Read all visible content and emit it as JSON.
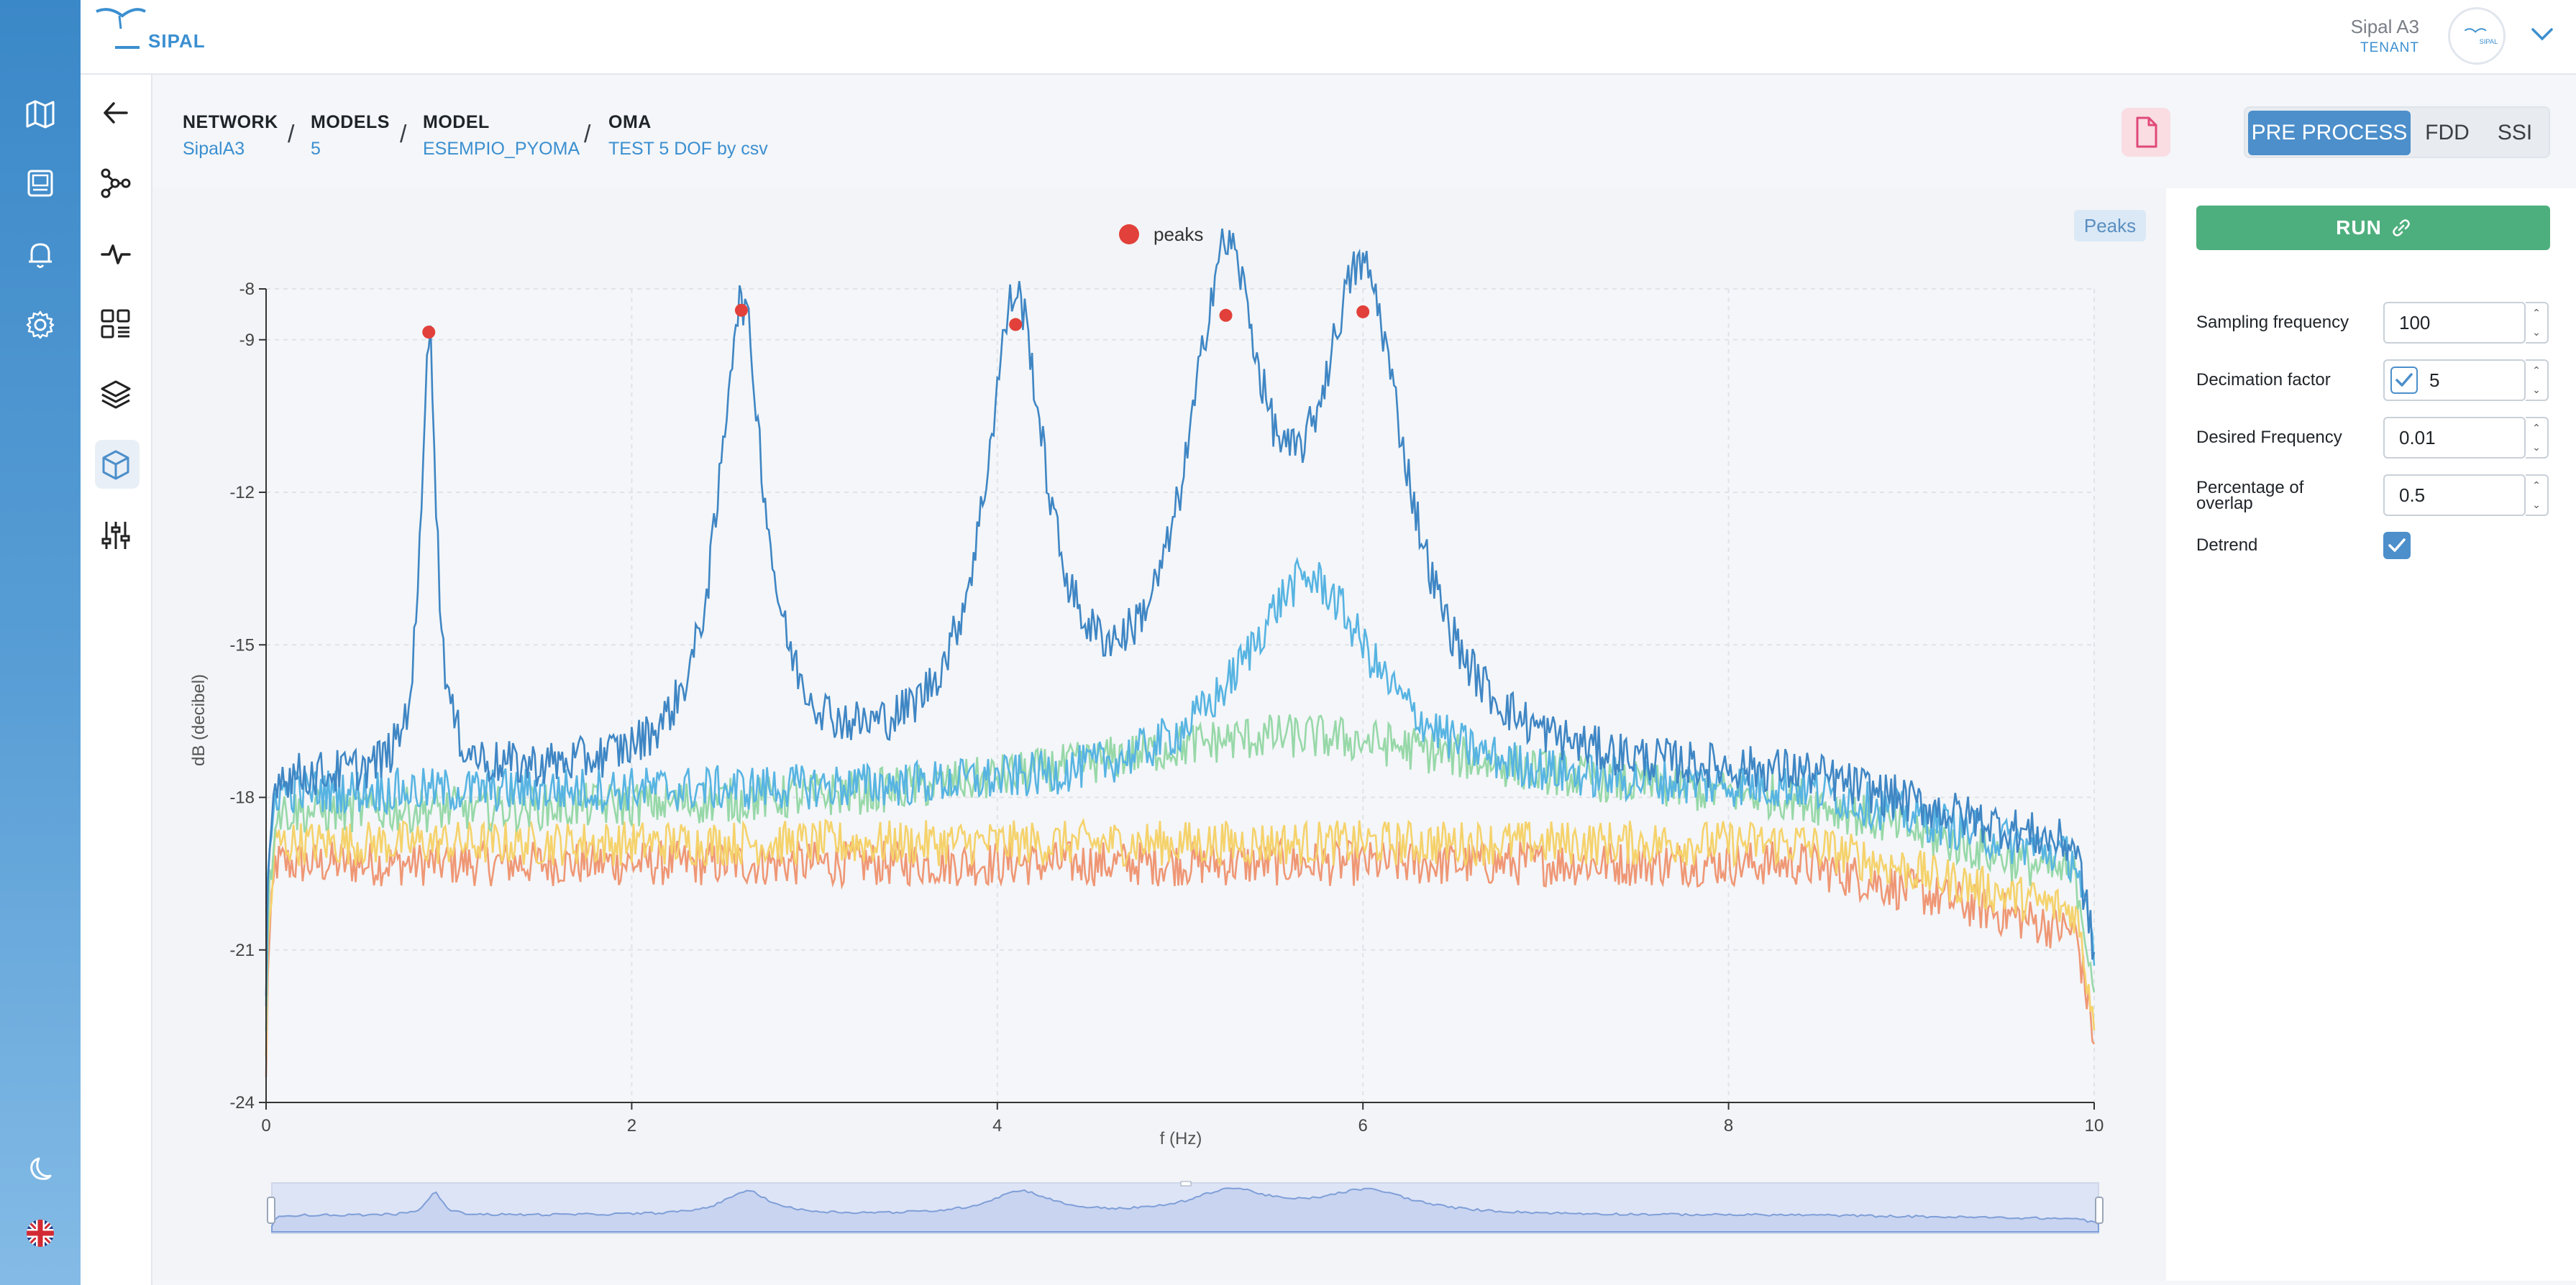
{
  "header": {
    "logo_text": "SIPAL",
    "user_name": "Sipal A3",
    "user_role": "TENANT",
    "avatar_text": "SIPAL"
  },
  "sidebar_primary": {
    "items": [
      {
        "icon": "map-icon"
      },
      {
        "icon": "calendar-icon"
      },
      {
        "icon": "bell-icon"
      },
      {
        "icon": "gear-icon"
      }
    ],
    "bottom": [
      {
        "icon": "moon-icon"
      },
      {
        "icon": "uk-flag-icon"
      }
    ]
  },
  "sidebar_secondary": {
    "items": [
      {
        "icon": "back-arrow-icon"
      },
      {
        "icon": "network-icon"
      },
      {
        "icon": "pulse-icon"
      },
      {
        "icon": "dashboard-list-icon"
      },
      {
        "icon": "layers-icon"
      },
      {
        "icon": "cube-icon",
        "active": true
      },
      {
        "icon": "sliders-icon"
      }
    ]
  },
  "breadcrumb": [
    {
      "label": "NETWORK",
      "value": "SipalA3"
    },
    {
      "label": "MODELS",
      "value": "5"
    },
    {
      "label": "MODEL",
      "value": "ESEMPIO_PYOMA"
    },
    {
      "label": "OMA",
      "value": "TEST 5 DOF by csv"
    }
  ],
  "breadcrumb_separator": "/",
  "tabs": [
    {
      "label": "PRE PROCESS",
      "active": true
    },
    {
      "label": "FDD",
      "active": false
    },
    {
      "label": "SSI",
      "active": false
    }
  ],
  "peaks_badge": "Peaks",
  "run_button": "RUN",
  "params": [
    {
      "label": "Sampling frequency",
      "value": "100",
      "checkbox": false
    },
    {
      "label": "Decimation factor",
      "value": "5",
      "checkbox": true
    },
    {
      "label": "Desired Frequency",
      "value": "0.01",
      "checkbox": false
    },
    {
      "label": "Percentage of overlap",
      "label_line1": "Percentage of",
      "label_line2": "overlap",
      "value": "0.5",
      "checkbox": false
    }
  ],
  "detrend": {
    "label": "Detrend",
    "checked": true
  },
  "chart_data": {
    "type": "line",
    "xlabel": "f (Hz)",
    "ylabel": "dB (decibel)",
    "xlim": [
      0,
      10
    ],
    "ylim": [
      -24,
      -8
    ],
    "xticks": [
      "0",
      "2",
      "4",
      "6",
      "8",
      "10"
    ],
    "yticks": [
      "-24",
      "-21",
      "-18",
      "-15",
      "-12",
      "-9",
      "-8"
    ],
    "grid": true,
    "legend_position": "top-center",
    "legend": [
      {
        "name": "peaks",
        "color": "#e2403a"
      }
    ],
    "peaks": {
      "name": "peaks",
      "x": [
        0.89,
        2.6,
        4.1,
        5.25,
        6.0
      ],
      "y": [
        -8.85,
        -8.42,
        -8.7,
        -8.52,
        -8.45
      ]
    },
    "series": [
      {
        "color": "#3f86c4",
        "base": -17.7,
        "peaks": [
          [
            0.89,
            -8.9,
            0.05
          ],
          [
            2.6,
            -8.55,
            0.15
          ],
          [
            4.1,
            -8.8,
            0.2
          ],
          [
            5.25,
            -8.65,
            0.25
          ],
          [
            6.0,
            -8.55,
            0.3
          ]
        ]
      },
      {
        "color": "#57b4e2",
        "base": -17.9,
        "peaks": [
          [
            5.7,
            -13.7,
            0.45
          ]
        ]
      },
      {
        "color": "#97d8a8",
        "base": -18.4,
        "peaks": [
          [
            5.6,
            -16.8,
            1.6
          ]
        ]
      },
      {
        "color": "#f5d26b",
        "base": -18.9,
        "peaks": []
      },
      {
        "color": "#ef9775",
        "base": -19.3,
        "peaks": []
      }
    ]
  },
  "colors": {
    "accent": "#4c8fcb",
    "run": "#4eaf7e",
    "peak": "#e2403a"
  }
}
